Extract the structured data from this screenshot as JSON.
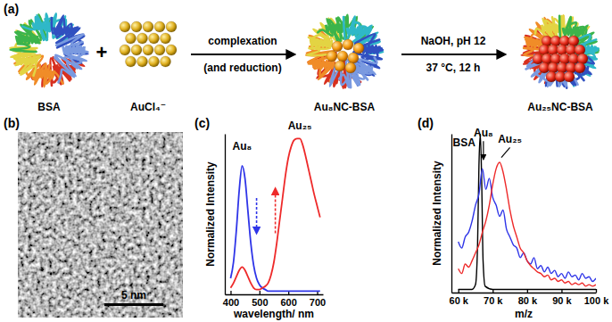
{
  "schematic": {
    "title": "(a)",
    "plus": "+",
    "items": [
      "BSA",
      "AuCl₄⁻",
      "Au₈NC-BSA",
      "Au₂₅NC-BSA"
    ],
    "steps": [
      {
        "above": "complexation",
        "below": "(and reduction)"
      },
      {
        "above": "NaOH, pH 12",
        "below": "37 °C, 12 h"
      }
    ]
  },
  "tem": {
    "title": "(b)",
    "scale_bar": "5 nm"
  },
  "chart_data": [
    {
      "type": "line",
      "title": "(c)",
      "xlabel": "wavelength/ nm",
      "ylabel": "Normalized Intensity",
      "xlim": [
        380,
        720
      ],
      "xticks": [
        400,
        500,
        600,
        700
      ],
      "ylim": [
        0,
        1
      ],
      "tick_labels": "x",
      "x": [
        400,
        410,
        420,
        430,
        440,
        450,
        460,
        470,
        480,
        490,
        500,
        510,
        520,
        530,
        540,
        550,
        560,
        570,
        580,
        590,
        600,
        610,
        620,
        630,
        640,
        650,
        660,
        670,
        680,
        690,
        700,
        710
      ],
      "series": [
        {
          "color": "#2f35e8",
          "values": [
            0.1,
            0.2,
            0.4,
            0.65,
            0.8,
            0.72,
            0.52,
            0.32,
            0.18,
            0.1,
            0.06,
            0.04,
            0.03,
            0.02,
            0.02,
            0.02,
            0.02,
            0.02,
            0.02,
            0.02,
            0.02,
            0.02,
            0.02,
            0.02,
            0.02,
            0.02,
            0.02,
            0.02,
            0.02,
            0.02,
            0.02,
            0.02
          ]
        },
        {
          "color": "#ee2a2a",
          "values": [
            0.04,
            0.07,
            0.11,
            0.15,
            0.17,
            0.15,
            0.11,
            0.07,
            0.04,
            0.03,
            0.03,
            0.04,
            0.05,
            0.07,
            0.12,
            0.2,
            0.32,
            0.46,
            0.6,
            0.74,
            0.85,
            0.92,
            0.96,
            0.97,
            0.97,
            0.93,
            0.86,
            0.78,
            0.7,
            0.62,
            0.55,
            0.48
          ]
        }
      ],
      "annotations": [
        {
          "text": "Au₈",
          "x": 440,
          "y": 0.9
        },
        {
          "text": "Au₂₅",
          "x": 640,
          "y": 1.03
        }
      ],
      "arrows": [
        {
          "x": 490,
          "y_from": 0.6,
          "y_to": 0.38,
          "color": "#2f35e8"
        },
        {
          "x": 555,
          "y_from": 0.38,
          "y_to": 0.66,
          "color": "#ee2a2a"
        }
      ]
    },
    {
      "type": "line",
      "title": "(d)",
      "xlabel": "m/z",
      "ylabel": "Normalized Intensity",
      "xlim": [
        58000,
        100000
      ],
      "xticks": [
        {
          "value": 60000,
          "label": "60 k"
        },
        {
          "value": 70000,
          "label": "70 k"
        },
        {
          "value": 80000,
          "label": "80 k"
        },
        {
          "value": 90000,
          "label": "90 k"
        },
        {
          "value": 100000,
          "label": "100 k"
        }
      ],
      "ylim": [
        0,
        1
      ],
      "tick_labels": "x",
      "series": [
        {
          "color": "#000000",
          "x": [
            60000,
            64000,
            65000,
            65600,
            66000,
            66400,
            66800,
            67200,
            67800,
            70000,
            100000
          ],
          "values": [
            0.02,
            0.02,
            0.05,
            0.3,
            0.8,
            1.0,
            0.7,
            0.2,
            0.04,
            0.02,
            0.02
          ]
        },
        {
          "color": "#2f35e8",
          "x": [
            60000,
            61000,
            62000,
            63000,
            64000,
            65000,
            66000,
            67000,
            68000,
            69000,
            70000,
            71000,
            72000,
            73000,
            74000,
            75000,
            76000,
            77000,
            78000,
            79000,
            80000,
            81000,
            82000,
            83000,
            84000,
            85000,
            86000,
            87000,
            88000,
            89000,
            90000,
            91000,
            92000,
            93000,
            94000,
            95000,
            96000,
            97000,
            98000,
            99000,
            100000
          ],
          "values": [
            0.32,
            0.28,
            0.35,
            0.38,
            0.45,
            0.55,
            0.62,
            0.78,
            0.65,
            0.72,
            0.6,
            0.55,
            0.48,
            0.52,
            0.4,
            0.35,
            0.3,
            0.28,
            0.22,
            0.25,
            0.2,
            0.18,
            0.22,
            0.15,
            0.17,
            0.13,
            0.16,
            0.12,
            0.14,
            0.1,
            0.12,
            0.09,
            0.13,
            0.1,
            0.11,
            0.08,
            0.12,
            0.09,
            0.1,
            0.07,
            0.09
          ]
        },
        {
          "color": "#ee2a2a",
          "x": [
            60000,
            61000,
            62000,
            63000,
            64000,
            65000,
            66000,
            67000,
            68000,
            69000,
            70000,
            71000,
            72000,
            73000,
            74000,
            75000,
            76000,
            77000,
            78000,
            79000,
            80000,
            81000,
            82000,
            83000,
            84000,
            85000,
            86000,
            87000,
            88000,
            89000,
            90000,
            91000,
            92000,
            93000,
            94000,
            95000,
            96000,
            97000,
            98000,
            99000,
            100000
          ],
          "values": [
            0.15,
            0.12,
            0.18,
            0.16,
            0.2,
            0.25,
            0.3,
            0.38,
            0.45,
            0.55,
            0.68,
            0.78,
            0.82,
            0.76,
            0.65,
            0.52,
            0.42,
            0.35,
            0.28,
            0.25,
            0.2,
            0.17,
            0.15,
            0.13,
            0.12,
            0.1,
            0.11,
            0.08,
            0.09,
            0.07,
            0.08,
            0.06,
            0.07,
            0.05,
            0.06,
            0.05,
            0.06,
            0.04,
            0.05,
            0.04,
            0.05
          ]
        }
      ],
      "annotations": [
        {
          "text": "BSA",
          "x": 61700,
          "y": 0.92
        },
        {
          "text": "Au₈",
          "x": 67300,
          "y": 0.97,
          "to": [
            67300,
            0.84
          ]
        },
        {
          "text": "Au₂₅",
          "x": 75000,
          "y": 0.93,
          "to": [
            72500,
            0.85
          ]
        }
      ]
    }
  ]
}
